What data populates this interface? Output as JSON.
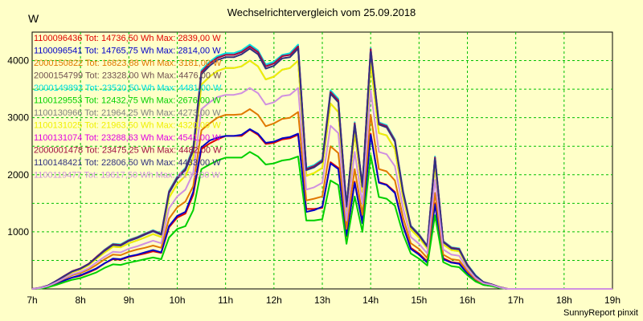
{
  "title": "Wechselrichtervergleich vom 25.09.2018",
  "unit": "W",
  "credit": "SunnyReport pinxit",
  "chart_data": {
    "type": "line",
    "title": "Wechselrichtervergleich vom 25.09.2018",
    "ylabel": "W",
    "xlim": [
      7,
      19
    ],
    "ylim": [
      0,
      4500
    ],
    "grid": true,
    "legend_position": "top-left",
    "x_ticks": [
      "7h",
      "8h",
      "9h",
      "10h",
      "11h",
      "12h",
      "13h",
      "14h",
      "15h",
      "16h",
      "17h",
      "18h",
      "19h"
    ],
    "y_ticks": [
      1000,
      2000,
      3000,
      4000
    ],
    "x": [
      7.0,
      7.17,
      7.33,
      7.5,
      7.67,
      7.83,
      8.0,
      8.17,
      8.33,
      8.5,
      8.67,
      8.83,
      9.0,
      9.17,
      9.33,
      9.5,
      9.67,
      9.83,
      10.0,
      10.17,
      10.33,
      10.5,
      10.67,
      10.83,
      11.0,
      11.17,
      11.33,
      11.5,
      11.67,
      11.83,
      12.0,
      12.17,
      12.33,
      12.5,
      12.67,
      12.83,
      13.0,
      13.17,
      13.33,
      13.5,
      13.67,
      13.83,
      14.0,
      14.17,
      14.33,
      14.5,
      14.67,
      14.83,
      15.0,
      15.17,
      15.33,
      15.5,
      15.67,
      15.83,
      16.0,
      16.17,
      16.33,
      16.5,
      16.67,
      16.83,
      17.0,
      17.17,
      17.33,
      17.5,
      17.67,
      17.83,
      18.0,
      18.17,
      18.33,
      18.5,
      18.67,
      18.83,
      19.0
    ],
    "series": [
      {
        "name": "1100096436",
        "label": "1100096436 Tot: 14736,50 Wh Max: 2839,00 W",
        "color": "#e00000",
        "values": [
          0,
          10,
          40,
          90,
          150,
          200,
          230,
          290,
          350,
          450,
          520,
          510,
          560,
          590,
          620,
          660,
          630,
          1080,
          1250,
          1320,
          1650,
          2450,
          2550,
          2620,
          2680,
          2680,
          2680,
          2790,
          2700,
          2540,
          2560,
          2620,
          2640,
          2700,
          1400,
          1400,
          1420,
          2220,
          2120,
          920,
          1880,
          1160,
          2720,
          1870,
          1830,
          1700,
          1120,
          720,
          620,
          480,
          1500,
          540,
          470,
          450,
          280,
          150,
          80,
          60,
          20,
          0,
          0,
          0,
          0,
          0,
          0,
          0,
          0,
          0,
          0,
          0,
          0,
          0,
          0
        ]
      },
      {
        "name": "1100096541",
        "label": "1100096541 Tot: 14765,75 Wh Max: 2814,00 W",
        "color": "#0000c8",
        "values": [
          0,
          10,
          40,
          90,
          150,
          200,
          240,
          300,
          360,
          450,
          530,
          520,
          570,
          600,
          640,
          680,
          640,
          1100,
          1280,
          1350,
          1700,
          2480,
          2600,
          2650,
          2680,
          2680,
          2700,
          2800,
          2720,
          2560,
          2580,
          2640,
          2660,
          2720,
          1350,
          1380,
          1440,
          2200,
          2100,
          940,
          1860,
          1150,
          2700,
          1860,
          1820,
          1680,
          1100,
          700,
          600,
          460,
          1480,
          520,
          460,
          440,
          270,
          140,
          70,
          50,
          20,
          0,
          0,
          0,
          0,
          0,
          0,
          0,
          0,
          0,
          0,
          0,
          0,
          0,
          0
        ]
      },
      {
        "name": "2000150822",
        "label": "2000150822 Tot: 16823,88 Wh Max: 3181,00 W",
        "color": "#e07800",
        "values": [
          0,
          15,
          50,
          110,
          180,
          240,
          280,
          340,
          420,
          520,
          600,
          590,
          650,
          690,
          720,
          760,
          720,
          1230,
          1430,
          1530,
          1800,
          2780,
          2900,
          3000,
          3050,
          3050,
          3060,
          3150,
          3050,
          2850,
          2900,
          2980,
          3000,
          3100,
          1550,
          1580,
          1620,
          2500,
          2380,
          1050,
          2100,
          1300,
          3050,
          2100,
          2060,
          1900,
          1250,
          800,
          700,
          540,
          1680,
          600,
          520,
          500,
          310,
          170,
          90,
          60,
          25,
          0,
          0,
          0,
          0,
          0,
          0,
          0,
          0,
          0,
          0,
          0,
          0,
          0,
          0
        ]
      },
      {
        "name": "2000154799",
        "label": "2000154799 Tot: 23328,00 Wh Max: 4476,00 W",
        "color": "#705050",
        "values": [
          0,
          20,
          60,
          140,
          230,
          310,
          360,
          440,
          560,
          680,
          780,
          770,
          850,
          900,
          960,
          1020,
          960,
          1700,
          1950,
          2100,
          2450,
          3800,
          3950,
          4050,
          4100,
          4100,
          4150,
          4250,
          4150,
          3900,
          3950,
          4080,
          4100,
          4250,
          2100,
          2150,
          2250,
          3450,
          3300,
          1450,
          2900,
          1800,
          4200,
          2900,
          2850,
          2600,
          1700,
          1100,
          950,
          750,
          2300,
          830,
          720,
          700,
          420,
          230,
          120,
          80,
          30,
          0,
          0,
          0,
          0,
          0,
          0,
          0,
          0,
          0,
          0,
          0,
          0,
          0,
          0
        ]
      },
      {
        "name": "2000149892",
        "label": "2000149892 Tot: 23520,50 Wh Max: 4481,00 W",
        "color": "#00e0e0",
        "values": [
          0,
          20,
          60,
          140,
          230,
          310,
          360,
          440,
          560,
          690,
          790,
          780,
          860,
          910,
          970,
          1030,
          970,
          1720,
          1970,
          2120,
          2480,
          3830,
          3980,
          4080,
          4130,
          4130,
          4180,
          4280,
          4180,
          3930,
          3980,
          4100,
          4130,
          4280,
          2120,
          2170,
          2270,
          3480,
          3330,
          1460,
          2920,
          1810,
          4220,
          2920,
          2870,
          2620,
          1720,
          1110,
          960,
          760,
          2320,
          840,
          730,
          710,
          430,
          240,
          120,
          80,
          30,
          0,
          0,
          0,
          0,
          0,
          0,
          0,
          0,
          0,
          0,
          0,
          0,
          0,
          0
        ]
      },
      {
        "name": "1100129553",
        "label": "1100129553 Tot: 12432,75 Wh Max: 2676,00 W",
        "color": "#00d000",
        "values": [
          0,
          5,
          30,
          70,
          120,
          160,
          190,
          240,
          290,
          370,
          430,
          420,
          460,
          490,
          520,
          550,
          520,
          900,
          1050,
          1100,
          1380,
          2100,
          2180,
          2250,
          2300,
          2300,
          2300,
          2400,
          2320,
          2180,
          2200,
          2250,
          2270,
          2320,
          1200,
          1200,
          1220,
          1900,
          1820,
          790,
          1620,
          1000,
          2340,
          1610,
          1580,
          1460,
          960,
          620,
          530,
          410,
          1290,
          470,
          400,
          380,
          240,
          130,
          70,
          50,
          15,
          0,
          0,
          0,
          0,
          0,
          0,
          0,
          0,
          0,
          0,
          0,
          0,
          0,
          0
        ]
      },
      {
        "name": "1100130966",
        "label": "1100130966 Tot: 21964,25 Wh Max: 4273,00 W",
        "color": "#808080",
        "values": [
          0,
          18,
          55,
          130,
          215,
          290,
          340,
          415,
          530,
          640,
          740,
          730,
          800,
          850,
          900,
          960,
          910,
          1600,
          1840,
          1980,
          2300,
          3580,
          3720,
          3820,
          3870,
          3870,
          3900,
          4000,
          3900,
          3670,
          3720,
          3840,
          3870,
          4000,
          1980,
          2030,
          2120,
          3250,
          3100,
          1370,
          2730,
          1700,
          3960,
          2730,
          2690,
          2450,
          1600,
          1040,
          900,
          710,
          2170,
          780,
          680,
          660,
          400,
          220,
          110,
          80,
          30,
          0,
          0,
          0,
          0,
          0,
          0,
          0,
          0,
          0,
          0,
          0,
          0,
          0,
          0
        ]
      },
      {
        "name": "1100131025",
        "label": "1100131025 Tot: 21963,50 Wh Max: 4320,00 W",
        "color": "#f0f000",
        "values": [
          0,
          18,
          55,
          130,
          215,
          290,
          340,
          415,
          530,
          640,
          740,
          730,
          800,
          850,
          900,
          960,
          910,
          1600,
          1840,
          1980,
          2300,
          3580,
          3720,
          3820,
          3870,
          3870,
          3900,
          4000,
          3900,
          3670,
          3720,
          3840,
          3870,
          4000,
          1980,
          2030,
          2120,
          3250,
          3100,
          1370,
          2730,
          1700,
          3960,
          2730,
          2690,
          2450,
          1600,
          1040,
          900,
          710,
          2170,
          780,
          680,
          660,
          400,
          220,
          110,
          80,
          30,
          0,
          0,
          0,
          0,
          0,
          0,
          0,
          0,
          0,
          0,
          0,
          0,
          0,
          0
        ]
      },
      {
        "name": "1100131074",
        "label": "1100131074 Tot: 23288,63 Wh Max: 4541,00 W",
        "color": "#e000e0",
        "values": [
          0,
          20,
          60,
          140,
          230,
          310,
          360,
          440,
          560,
          680,
          780,
          770,
          850,
          900,
          960,
          1020,
          960,
          1700,
          1950,
          2100,
          2450,
          3800,
          3950,
          4050,
          4100,
          4100,
          4150,
          4250,
          4150,
          3900,
          3950,
          4080,
          4100,
          4250,
          2100,
          2150,
          2250,
          3450,
          3300,
          1450,
          2900,
          1800,
          4200,
          2900,
          2850,
          2600,
          1700,
          1100,
          950,
          750,
          2300,
          830,
          720,
          700,
          420,
          230,
          120,
          80,
          30,
          0,
          0,
          0,
          0,
          0,
          0,
          0,
          0,
          0,
          0,
          0,
          0,
          0,
          0
        ]
      },
      {
        "name": "2000001478",
        "label": "2000001478 Tot: 23475,25 Wh Max: 4482,00 W",
        "color": "#a01040",
        "values": [
          0,
          20,
          60,
          140,
          230,
          310,
          360,
          440,
          560,
          680,
          780,
          770,
          850,
          900,
          960,
          1020,
          960,
          1700,
          1950,
          2100,
          2450,
          3800,
          3950,
          4050,
          4100,
          4100,
          4150,
          4250,
          4150,
          3900,
          3950,
          4080,
          4100,
          4250,
          2100,
          2150,
          2250,
          3450,
          3300,
          1450,
          2900,
          1800,
          4200,
          2900,
          2850,
          2600,
          1700,
          1100,
          950,
          750,
          2300,
          830,
          720,
          700,
          420,
          230,
          120,
          80,
          30,
          0,
          0,
          0,
          0,
          0,
          0,
          0,
          0,
          0,
          0,
          0,
          0,
          0,
          0
        ]
      },
      {
        "name": "1100148421",
        "label": "1100148421 Tot: 22806,50 Wh Max: 4433,00 W",
        "color": "#303080",
        "values": [
          0,
          20,
          60,
          140,
          225,
          305,
          355,
          435,
          550,
          670,
          770,
          760,
          840,
          890,
          950,
          1010,
          950,
          1680,
          1930,
          2080,
          2420,
          3760,
          3910,
          4010,
          4060,
          4060,
          4110,
          4210,
          4110,
          3860,
          3910,
          4040,
          4060,
          4210,
          2080,
          2130,
          2230,
          3420,
          3270,
          1440,
          2880,
          1790,
          4160,
          2880,
          2830,
          2580,
          1690,
          1090,
          940,
          740,
          2280,
          820,
          710,
          690,
          410,
          230,
          120,
          80,
          30,
          0,
          0,
          0,
          0,
          0,
          0,
          0,
          0,
          0,
          0,
          0,
          0,
          0,
          0
        ]
      },
      {
        "name": "1100119477",
        "label": "1100119477 Tot: 19617,50 Wh Max: 41??,00 W",
        "color": "#d090e0",
        "values": [
          0,
          15,
          50,
          115,
          190,
          255,
          300,
          365,
          465,
          565,
          650,
          640,
          705,
          745,
          795,
          845,
          800,
          1410,
          1620,
          1740,
          2030,
          3150,
          3270,
          3360,
          3400,
          3400,
          3430,
          3520,
          3430,
          3230,
          3270,
          3380,
          3400,
          3520,
          1740,
          1780,
          1860,
          2860,
          2730,
          1200,
          2400,
          1490,
          3480,
          2400,
          2360,
          2150,
          1410,
          910,
          790,
          620,
          1910,
          690,
          600,
          580,
          350,
          190,
          100,
          70,
          25,
          0,
          0,
          0,
          0,
          0,
          0,
          0,
          0,
          0,
          0,
          0,
          0,
          0,
          0
        ]
      }
    ]
  }
}
